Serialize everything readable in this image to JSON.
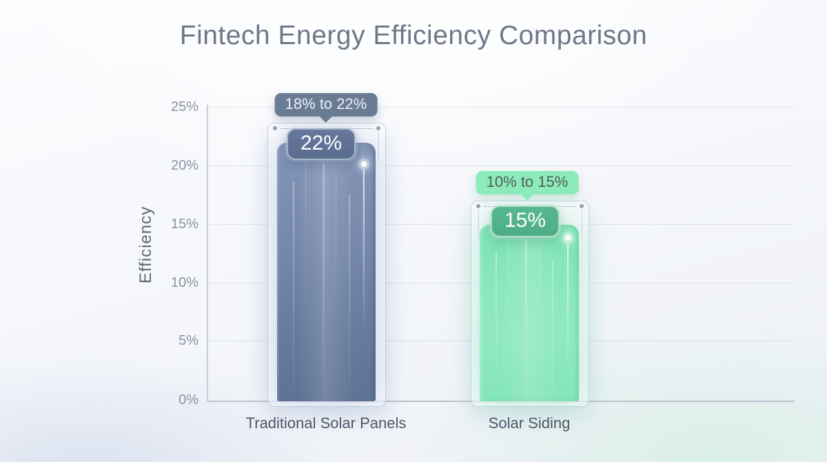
{
  "title": "Fintech Energy Efficiency Comparison",
  "y_axis": {
    "label": "Efficiency",
    "ticks": [
      "25%",
      "20%",
      "15%",
      "10%",
      "5%",
      "0%"
    ]
  },
  "bars": [
    {
      "category": "Traditional Solar Panels",
      "value_badge": "22%",
      "range_tooltip": "18% to 22%",
      "bar_color": "#6f83a6",
      "badge_color": "#5d7195",
      "tooltip_color": "#6a7b94"
    },
    {
      "category": "Solar Siding",
      "value_badge": "15%",
      "range_tooltip": "10% to 15%",
      "bar_color": "#86e6ba",
      "badge_color": "#52b28b",
      "tooltip_color": "#8deaba"
    }
  ],
  "chart_data": {
    "type": "bar",
    "title": "Fintech Energy Efficiency Comparison",
    "categories": [
      "Traditional Solar Panels",
      "Solar Siding"
    ],
    "values": [
      22,
      15
    ],
    "value_labels": [
      "22%",
      "15%"
    ],
    "ranges": [
      [
        18,
        22
      ],
      [
        10,
        15
      ]
    ],
    "range_labels": [
      "18% to 22%",
      "10% to 15%"
    ],
    "xlabel": "",
    "ylabel": "Efficiency",
    "ylim": [
      0,
      25
    ],
    "ytick_labels": [
      "0%",
      "5%",
      "10%",
      "15%",
      "20%",
      "25%"
    ],
    "grid": true,
    "legend_position": "none",
    "series_colors": [
      "#6f83a6",
      "#86e6ba"
    ]
  }
}
